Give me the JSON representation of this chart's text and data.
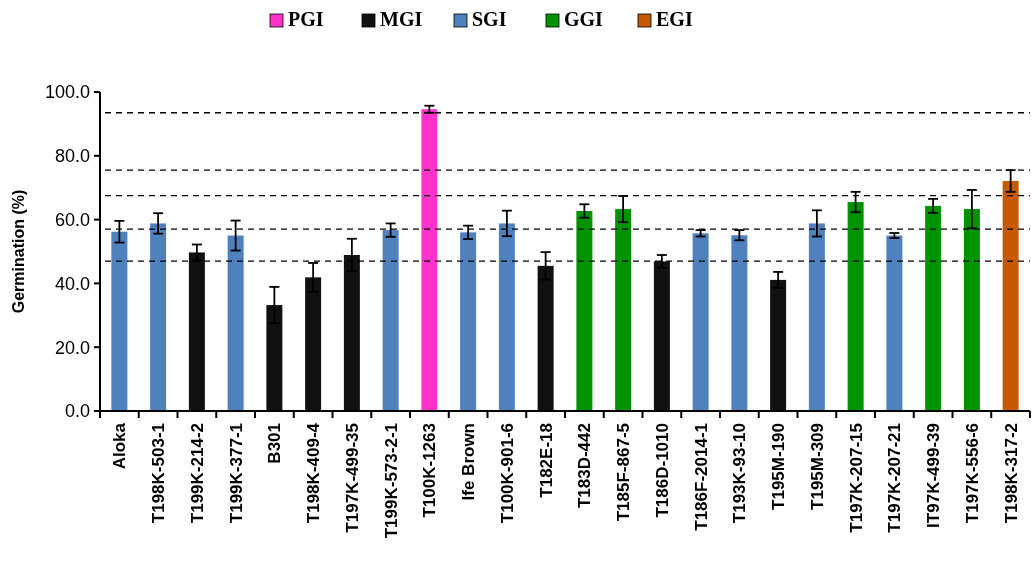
{
  "chart_data": {
    "type": "bar",
    "ylabel": "Germination (%)",
    "categories": [
      "Aloka",
      "T198K-503-1",
      "T199K-214-2",
      "T199K-377-1",
      "B301",
      "T198K-409-4",
      "T197K-499-35",
      "T199K-573-2-1",
      "T100K-1263",
      "Ife Brown",
      "T100K-901-6",
      "T182E-18",
      "T183D-442",
      "T185F-867-5",
      "T186D-1010",
      "T186F-2014-1",
      "T193K-93-10",
      "T195M-190",
      "T195M-309",
      "T197K-207-15",
      "T197K-207-21",
      "IT97K-499-39",
      "T197K-556-6",
      "T198K-317-2"
    ],
    "series": [
      {
        "name": "PGI",
        "color": "#ff33cc",
        "values": [
          null,
          null,
          null,
          null,
          null,
          null,
          null,
          null,
          94.6,
          null,
          null,
          null,
          null,
          null,
          null,
          null,
          null,
          null,
          null,
          null,
          null,
          null,
          null,
          null
        ],
        "errors": [
          null,
          null,
          null,
          null,
          null,
          null,
          null,
          null,
          1.1,
          null,
          null,
          null,
          null,
          null,
          null,
          null,
          null,
          null,
          null,
          null,
          null,
          null,
          null,
          null
        ]
      },
      {
        "name": "MGI",
        "color": "#111111",
        "values": [
          null,
          null,
          49.7,
          null,
          33.2,
          41.9,
          48.9,
          null,
          null,
          null,
          null,
          45.5,
          null,
          null,
          46.9,
          null,
          null,
          41.1,
          null,
          null,
          null,
          null,
          null,
          null
        ],
        "errors": [
          null,
          null,
          2.5,
          null,
          5.7,
          4.5,
          5.1,
          null,
          null,
          null,
          null,
          4.3,
          null,
          null,
          2.0,
          null,
          null,
          2.5,
          null,
          null,
          null,
          null,
          null,
          null
        ]
      },
      {
        "name": "SGI",
        "color": "#4f81bd",
        "values": [
          56.2,
          58.8,
          null,
          55.0,
          null,
          null,
          null,
          56.7,
          null,
          56.0,
          58.8,
          null,
          null,
          null,
          null,
          55.7,
          55.1,
          null,
          58.8,
          null,
          55.0,
          null,
          null,
          null
        ],
        "errors": [
          3.4,
          3.2,
          null,
          4.7,
          null,
          null,
          null,
          2.1,
          null,
          2.1,
          4.0,
          null,
          null,
          null,
          null,
          1.0,
          1.6,
          null,
          4.1,
          null,
          0.8,
          null,
          null,
          null
        ]
      },
      {
        "name": "GGI",
        "color": "#009300",
        "values": [
          null,
          null,
          null,
          null,
          null,
          null,
          null,
          null,
          null,
          null,
          null,
          null,
          62.7,
          63.3,
          null,
          null,
          null,
          null,
          null,
          65.5,
          null,
          64.3,
          63.3,
          null
        ],
        "errors": [
          null,
          null,
          null,
          null,
          null,
          null,
          null,
          null,
          null,
          null,
          null,
          null,
          2.1,
          4.1,
          null,
          null,
          null,
          null,
          null,
          3.2,
          null,
          2.2,
          6.0,
          null
        ]
      },
      {
        "name": "EGI",
        "color": "#c55a00",
        "values": [
          null,
          null,
          null,
          null,
          null,
          null,
          null,
          null,
          null,
          null,
          null,
          null,
          null,
          null,
          null,
          null,
          null,
          null,
          null,
          null,
          null,
          null,
          null,
          72.1
        ],
        "errors": [
          null,
          null,
          null,
          null,
          null,
          null,
          null,
          null,
          null,
          null,
          null,
          null,
          null,
          null,
          null,
          null,
          null,
          null,
          null,
          null,
          null,
          null,
          null,
          3.4
        ]
      }
    ],
    "ylim": [
      0,
      100
    ],
    "yticks": [
      {
        "value": 0,
        "label": "0.0"
      },
      {
        "value": 20,
        "label": "20.0"
      },
      {
        "value": 40,
        "label": "40.0"
      },
      {
        "value": 60,
        "label": "60.0"
      },
      {
        "value": 80,
        "label": "80.0"
      },
      {
        "value": 100,
        "label": "100.0"
      }
    ],
    "ref_lines": [
      {
        "axis": "y",
        "value": 93.5,
        "line_style": "dashed",
        "color": "#000000"
      },
      {
        "axis": "y",
        "value": 75.5,
        "line_style": "dashed",
        "color": "#000000"
      },
      {
        "axis": "y",
        "value": 67.5,
        "line_style": "dashed",
        "color": "#000000"
      },
      {
        "axis": "y",
        "value": 57,
        "line_style": "dashed",
        "color": "#000000"
      },
      {
        "axis": "y",
        "value": 47,
        "line_style": "dashed",
        "color": "#000000"
      }
    ],
    "legend": "top",
    "grid": false
  }
}
